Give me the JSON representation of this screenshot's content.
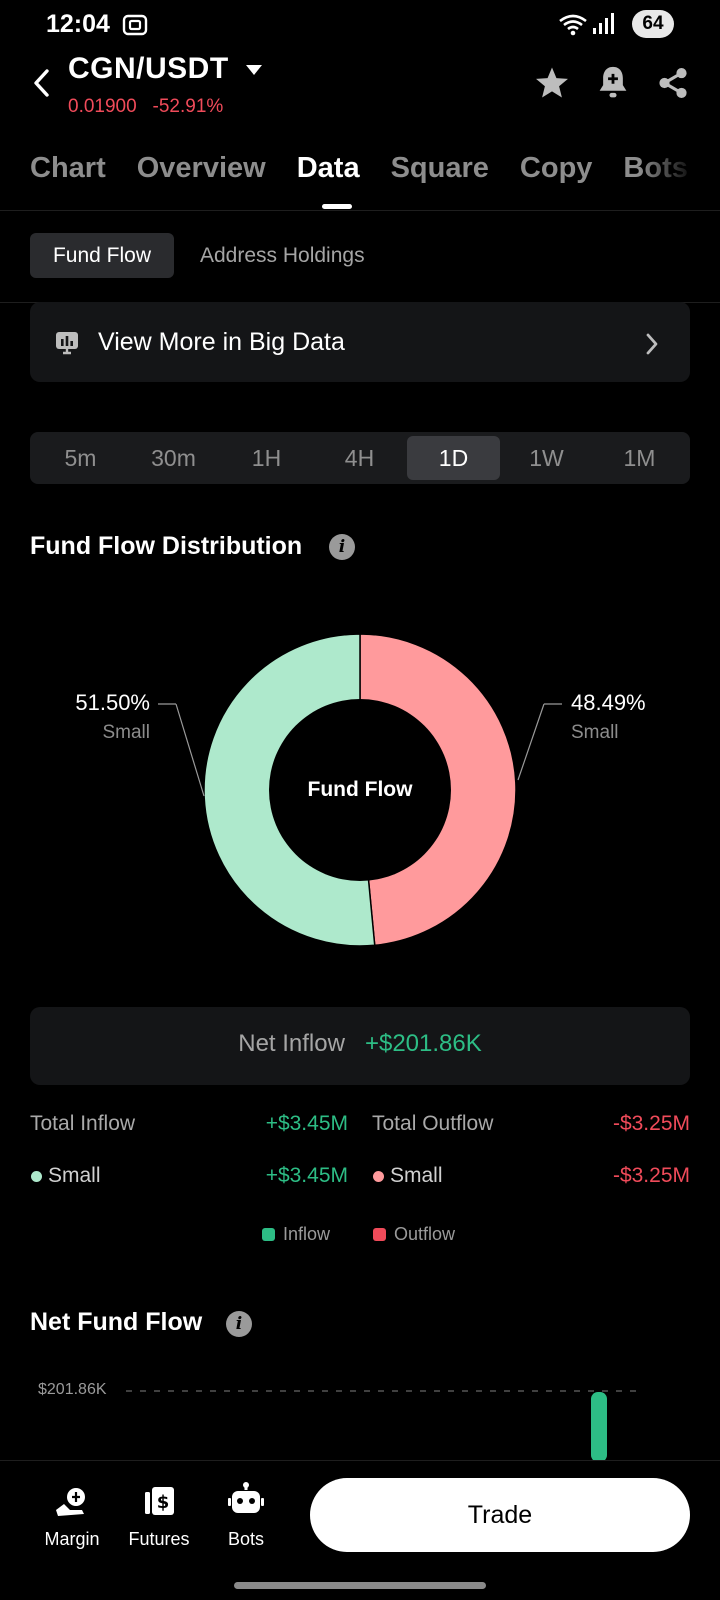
{
  "status_bar": {
    "time": "12:04",
    "battery": "64"
  },
  "header": {
    "pair": "CGN/USDT",
    "price": "0.01900",
    "change": "-52.91%",
    "tabs": [
      "Chart",
      "Overview",
      "Data",
      "Square",
      "Copy",
      "Bots"
    ],
    "active_tab": "Data"
  },
  "sub_tabs": {
    "active": "Fund Flow",
    "other": "Address Holdings"
  },
  "big_data": {
    "label": "View More in Big Data"
  },
  "intervals": {
    "items": [
      "5m",
      "30m",
      "1H",
      "4H",
      "1D",
      "1W",
      "1M"
    ],
    "active": "1D"
  },
  "distribution": {
    "title": "Fund Flow Distribution",
    "center_label": "Fund Flow",
    "inflow": {
      "pct": "51.50%",
      "label": "Small",
      "value": 51.5,
      "color": "#aee9cc"
    },
    "outflow": {
      "pct": "48.49%",
      "label": "Small",
      "value": 48.49,
      "color": "#ff9a9c"
    }
  },
  "net": {
    "label": "Net Inflow",
    "value": "+$201.86K"
  },
  "totals": {
    "inflow_label": "Total Inflow",
    "inflow_value": "+$3.45M",
    "outflow_label": "Total Outflow",
    "outflow_value": "-$3.25M",
    "small_in_label": "Small",
    "small_in_value": "+$3.45M",
    "small_out_label": "Small",
    "small_out_value": "-$3.25M"
  },
  "legend": {
    "inflow": "Inflow",
    "outflow": "Outflow"
  },
  "net_fund_flow": {
    "title": "Net Fund Flow",
    "y_label": "$201.86K"
  },
  "chart_data": {
    "type": "pie",
    "title": "Fund Flow Distribution",
    "slices": [
      {
        "name": "Small",
        "value": 51.5,
        "color": "#aee9cc"
      },
      {
        "name": "Small",
        "value": 48.49,
        "color": "#ff9a9c"
      }
    ]
  },
  "bottom_nav": {
    "margin": "Margin",
    "futures": "Futures",
    "bots": "Bots",
    "trade": "Trade"
  }
}
